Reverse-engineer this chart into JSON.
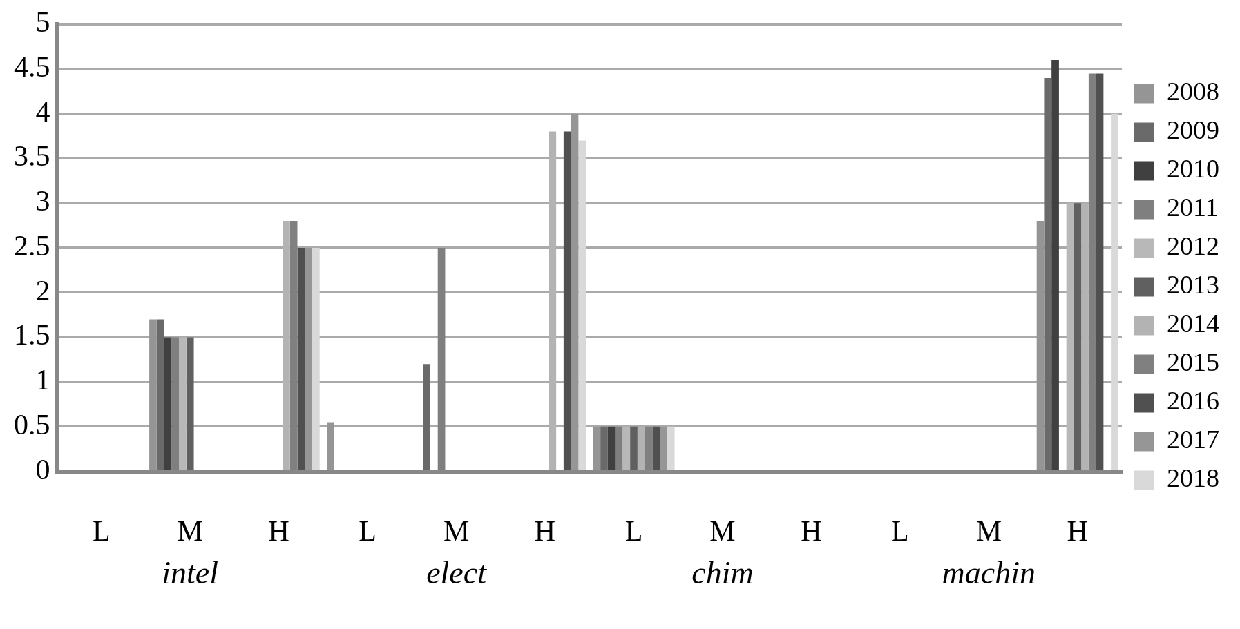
{
  "chart_data": {
    "type": "bar",
    "categories": [
      "L",
      "M",
      "H",
      "L",
      "M",
      "H",
      "L",
      "M",
      "H",
      "L",
      "M",
      "H"
    ],
    "annotations": [
      "intel",
      "elect",
      "chim",
      "machin"
    ],
    "ylim": [
      0,
      5
    ],
    "yticks": [
      0,
      {
        "value": 0.5,
        "label": "0.5"
      },
      1,
      {
        "value": 1.5,
        "label": "1.5"
      },
      2,
      {
        "value": 2.5,
        "label": "2.5"
      },
      3,
      {
        "value": 3.5,
        "label": "3.5"
      },
      4,
      {
        "value": 4.5,
        "label": "4.5"
      },
      5
    ],
    "grid": "y",
    "legend": "right",
    "series": [
      {
        "name": "2008",
        "color": "#959595",
        "values": [
          null,
          1.7,
          null,
          0.55,
          null,
          null,
          0.5,
          null,
          null,
          null,
          null,
          2.8
        ]
      },
      {
        "name": "2009",
        "color": "#6a6a6a",
        "values": [
          null,
          1.7,
          null,
          null,
          1.2,
          null,
          0.5,
          null,
          null,
          null,
          null,
          4.4
        ]
      },
      {
        "name": "2010",
        "color": "#404040",
        "values": [
          null,
          1.5,
          null,
          null,
          null,
          null,
          0.5,
          null,
          null,
          null,
          null,
          4.6
        ]
      },
      {
        "name": "2011",
        "color": "#7f7f7f",
        "values": [
          null,
          1.5,
          null,
          null,
          2.5,
          null,
          0.5,
          null,
          null,
          null,
          null,
          null
        ]
      },
      {
        "name": "2012",
        "color": "#b8b8b8",
        "values": [
          null,
          1.5,
          null,
          null,
          null,
          null,
          0.5,
          null,
          null,
          null,
          null,
          3.0
        ]
      },
      {
        "name": "2013",
        "color": "#606060",
        "values": [
          null,
          1.5,
          null,
          null,
          null,
          null,
          0.5,
          null,
          null,
          null,
          null,
          3.0
        ]
      },
      {
        "name": "2014",
        "color": "#b3b3b3",
        "values": [
          null,
          null,
          2.8,
          null,
          null,
          3.8,
          0.5,
          null,
          null,
          null,
          null,
          3.0
        ]
      },
      {
        "name": "2015",
        "color": "#808080",
        "values": [
          null,
          null,
          2.8,
          null,
          null,
          null,
          0.5,
          null,
          null,
          null,
          null,
          4.45
        ]
      },
      {
        "name": "2016",
        "color": "#505050",
        "values": [
          null,
          null,
          2.5,
          null,
          null,
          3.8,
          0.5,
          null,
          null,
          null,
          null,
          4.45
        ]
      },
      {
        "name": "2017",
        "color": "#969696",
        "values": [
          null,
          null,
          2.5,
          null,
          null,
          4.0,
          0.5,
          null,
          null,
          null,
          null,
          null
        ]
      },
      {
        "name": "2018",
        "color": "#d9d9d9",
        "values": [
          null,
          null,
          2.5,
          null,
          null,
          3.7,
          0.5,
          null,
          null,
          null,
          null,
          4.0
        ]
      }
    ]
  }
}
